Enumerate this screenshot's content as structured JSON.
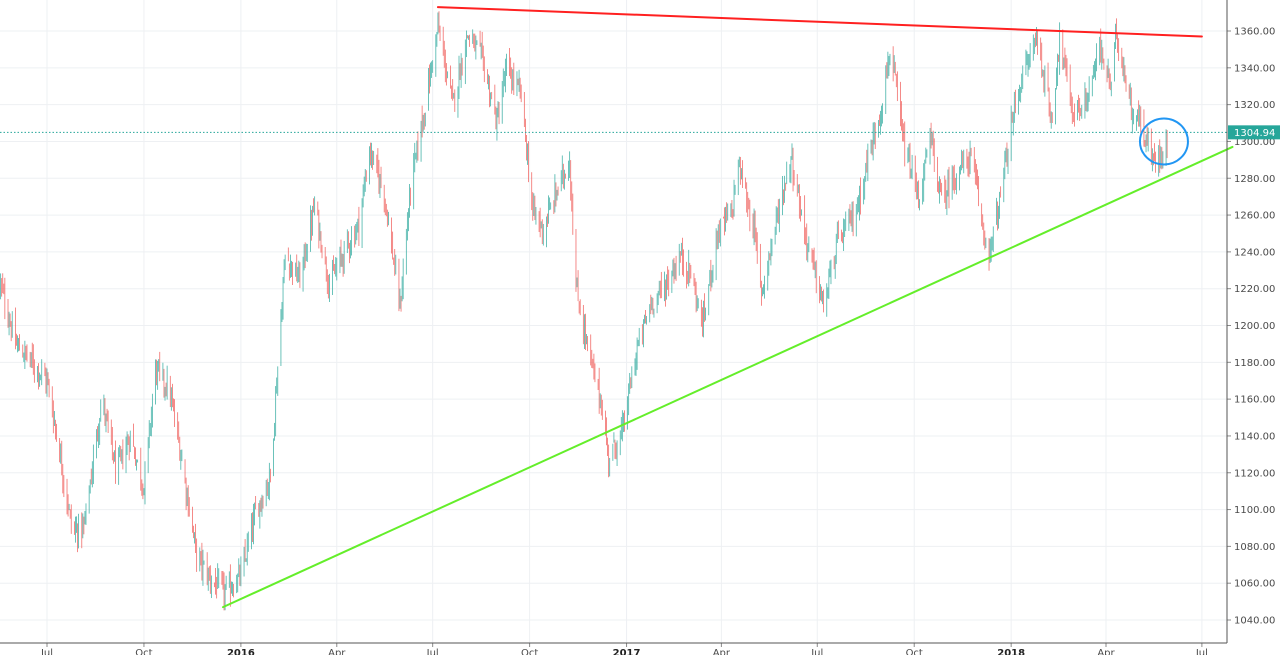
{
  "chart_data": {
    "type": "candlestick",
    "title": "",
    "xlabel": "",
    "ylabel": "",
    "y_axis_side": "right",
    "ylim": [
      1028,
      1375
    ],
    "grid": true,
    "y_ticks": [
      "1040.00",
      "1060.00",
      "1080.00",
      "1100.00",
      "1120.00",
      "1140.00",
      "1160.00",
      "1180.00",
      "1200.00",
      "1220.00",
      "1240.00",
      "1260.00",
      "1280.00",
      "1300.00",
      "1320.00",
      "1340.00",
      "1360.00"
    ],
    "x_ticks": [
      {
        "label": "Jul",
        "date": "2015-07-01",
        "bold": false
      },
      {
        "label": "Oct",
        "date": "2015-10-01",
        "bold": false
      },
      {
        "label": "2016",
        "date": "2016-01-01",
        "bold": true
      },
      {
        "label": "Apr",
        "date": "2016-04-01",
        "bold": false
      },
      {
        "label": "Jul",
        "date": "2016-07-01",
        "bold": false
      },
      {
        "label": "Oct",
        "date": "2016-10-01",
        "bold": false
      },
      {
        "label": "2017",
        "date": "2017-01-01",
        "bold": true
      },
      {
        "label": "Apr",
        "date": "2017-04-01",
        "bold": false
      },
      {
        "label": "Jul",
        "date": "2017-07-01",
        "bold": false
      },
      {
        "label": "Oct",
        "date": "2017-10-01",
        "bold": false
      },
      {
        "label": "2018",
        "date": "2018-01-01",
        "bold": true
      },
      {
        "label": "Apr",
        "date": "2018-04-01",
        "bold": false
      },
      {
        "label": "Jul",
        "date": "2018-07-01",
        "bold": false
      }
    ],
    "price_path": [
      [
        "2015-05-18",
        1222
      ],
      [
        "2015-06-01",
        1190
      ],
      [
        "2015-06-20",
        1178
      ],
      [
        "2015-07-01",
        1170
      ],
      [
        "2015-07-12",
        1135
      ],
      [
        "2015-07-25",
        1088
      ],
      [
        "2015-08-05",
        1090
      ],
      [
        "2015-08-22",
        1160
      ],
      [
        "2015-09-05",
        1120
      ],
      [
        "2015-09-18",
        1140
      ],
      [
        "2015-10-01",
        1112
      ],
      [
        "2015-10-12",
        1176
      ],
      [
        "2015-10-25",
        1165
      ],
      [
        "2015-11-05",
        1130
      ],
      [
        "2015-11-20",
        1075
      ],
      [
        "2015-12-03",
        1062
      ],
      [
        "2015-12-17",
        1055
      ],
      [
        "2016-01-01",
        1064
      ],
      [
        "2016-01-15",
        1098
      ],
      [
        "2016-01-29",
        1118
      ],
      [
        "2016-02-12",
        1238
      ],
      [
        "2016-02-26",
        1225
      ],
      [
        "2016-03-11",
        1265
      ],
      [
        "2016-03-25",
        1222
      ],
      [
        "2016-04-08",
        1240
      ],
      [
        "2016-04-22",
        1255
      ],
      [
        "2016-05-02",
        1295
      ],
      [
        "2016-05-16",
        1272
      ],
      [
        "2016-05-31",
        1210
      ],
      [
        "2016-06-10",
        1275
      ],
      [
        "2016-06-24",
        1320
      ],
      [
        "2016-07-06",
        1362
      ],
      [
        "2016-07-20",
        1320
      ],
      [
        "2016-08-03",
        1358
      ],
      [
        "2016-08-17",
        1345
      ],
      [
        "2016-08-31",
        1310
      ],
      [
        "2016-09-09",
        1340
      ],
      [
        "2016-09-23",
        1325
      ],
      [
        "2016-10-04",
        1262
      ],
      [
        "2016-10-14",
        1252
      ],
      [
        "2016-10-28",
        1275
      ],
      [
        "2016-11-08",
        1290
      ],
      [
        "2016-11-14",
        1220
      ],
      [
        "2016-11-28",
        1180
      ],
      [
        "2016-12-08",
        1158
      ],
      [
        "2016-12-15",
        1128
      ],
      [
        "2016-12-28",
        1142
      ],
      [
        "2017-01-10",
        1185
      ],
      [
        "2017-01-24",
        1212
      ],
      [
        "2017-02-07",
        1222
      ],
      [
        "2017-02-21",
        1238
      ],
      [
        "2017-03-03",
        1228
      ],
      [
        "2017-03-14",
        1200
      ],
      [
        "2017-03-28",
        1250
      ],
      [
        "2017-04-11",
        1262
      ],
      [
        "2017-04-17",
        1288
      ],
      [
        "2017-05-02",
        1252
      ],
      [
        "2017-05-09",
        1218
      ],
      [
        "2017-05-25",
        1262
      ],
      [
        "2017-06-06",
        1292
      ],
      [
        "2017-06-20",
        1248
      ],
      [
        "2017-07-07",
        1210
      ],
      [
        "2017-07-20",
        1245
      ],
      [
        "2017-08-07",
        1262
      ],
      [
        "2017-08-18",
        1290
      ],
      [
        "2017-09-01",
        1322
      ],
      [
        "2017-09-08",
        1350
      ],
      [
        "2017-09-22",
        1295
      ],
      [
        "2017-10-06",
        1268
      ],
      [
        "2017-10-16",
        1302
      ],
      [
        "2017-10-27",
        1268
      ],
      [
        "2017-11-10",
        1283
      ],
      [
        "2017-11-24",
        1292
      ],
      [
        "2017-12-06",
        1250
      ],
      [
        "2017-12-12",
        1240
      ],
      [
        "2017-12-22",
        1270
      ],
      [
        "2018-01-05",
        1322
      ],
      [
        "2018-01-25",
        1358
      ],
      [
        "2018-02-08",
        1312
      ],
      [
        "2018-02-16",
        1355
      ],
      [
        "2018-03-01",
        1315
      ],
      [
        "2018-03-12",
        1320
      ],
      [
        "2018-03-26",
        1350
      ],
      [
        "2018-04-06",
        1330
      ],
      [
        "2018-04-11",
        1360
      ],
      [
        "2018-04-25",
        1318
      ],
      [
        "2018-05-04",
        1310
      ],
      [
        "2018-05-15",
        1290
      ],
      [
        "2018-05-21",
        1292
      ],
      [
        "2018-05-29",
        1302
      ]
    ],
    "last_price": {
      "label": "1304.94",
      "value": 1304.94,
      "color": "#26a69a"
    },
    "annotations": [
      {
        "type": "trendline",
        "color": "#ff2020",
        "from": {
          "date": "2016-07-06",
          "price": 1373
        },
        "to": {
          "date": "2018-07-01",
          "price": 1357
        }
      },
      {
        "type": "trendline",
        "color": "#64ee2a",
        "from": {
          "date": "2015-12-15",
          "price": 1047
        },
        "to": {
          "date": "2018-07-30",
          "price": 1297
        }
      },
      {
        "type": "ellipse",
        "color": "#2196f3",
        "center": {
          "date": "2018-05-26",
          "price": 1300
        }
      }
    ],
    "up_color": "#26a69a",
    "down_color": "#ef5350"
  }
}
